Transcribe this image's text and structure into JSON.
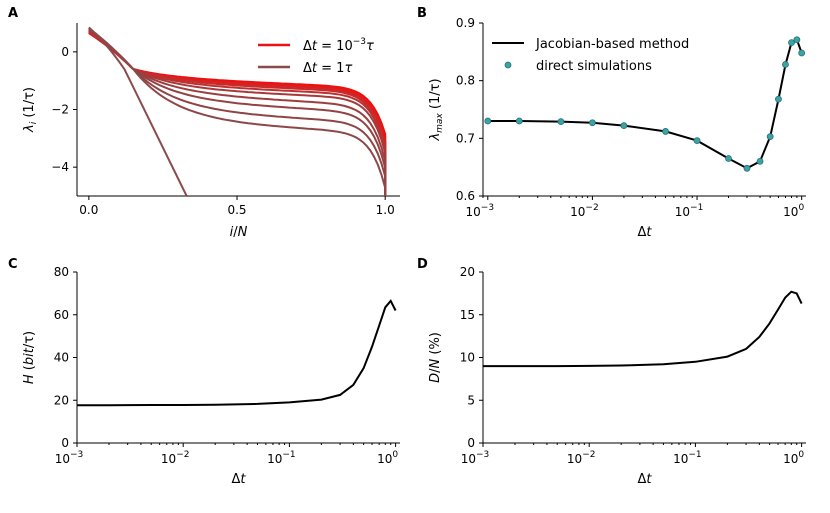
{
  "chart_data": [
    {
      "panel": "A",
      "type": "line",
      "xlabel_parts": [
        "i",
        "/",
        "N"
      ],
      "ylabel_parts": [
        "λ",
        "i",
        " (1/τ)"
      ],
      "xlim": [
        -0.04,
        1.05
      ],
      "ylim": [
        -5.0,
        1.0
      ],
      "xticks": [
        0.0,
        0.5,
        1.0
      ],
      "xtick_labels": [
        "0.0",
        "0.5",
        "1.0"
      ],
      "yticks": [
        0,
        -2,
        -4
      ],
      "ytick_labels": [
        "0",
        "−2",
        "−4"
      ],
      "legend": [
        {
          "label_parts": [
            "Δ",
            "t",
            " = 10",
            "−3",
            "τ"
          ],
          "color": "#ee1111"
        },
        {
          "label_parts": [
            "Δ",
            "t",
            " = 1",
            "τ"
          ],
          "color": "#8c4b4b"
        }
      ],
      "legend_position": "top-right",
      "spectra": [
        {
          "plateau": -1.1,
          "start": 0.65,
          "end": -2.7,
          "color": "#ee1111"
        },
        {
          "plateau": -1.13,
          "start": 0.66,
          "end": -2.8,
          "color": "#ee1111"
        },
        {
          "plateau": -1.16,
          "start": 0.67,
          "end": -2.9,
          "color": "#e51818"
        },
        {
          "plateau": -1.2,
          "start": 0.68,
          "end": -3.0,
          "color": "#d82222"
        },
        {
          "plateau": -1.26,
          "start": 0.7,
          "end": -3.1,
          "color": "#c82b2b"
        },
        {
          "plateau": -1.35,
          "start": 0.72,
          "end": -3.2,
          "color": "#b83232"
        },
        {
          "plateau": -1.48,
          "start": 0.74,
          "end": -3.35,
          "color": "#a83939"
        },
        {
          "plateau": -1.65,
          "start": 0.76,
          "end": -3.55,
          "color": "#9c3e3e"
        },
        {
          "plateau": -1.9,
          "start": 0.78,
          "end": -3.8,
          "color": "#944242"
        },
        {
          "plateau": -2.25,
          "start": 0.8,
          "end": -4.1,
          "color": "#904545"
        },
        {
          "plateau": -2.6,
          "start": 0.82,
          "end": -4.5,
          "color": "#8c4848"
        }
      ],
      "steep_line": {
        "x": [
          0.0,
          0.33
        ],
        "y": [
          0.85,
          -5.0
        ],
        "color": "#8c4b4b"
      }
    },
    {
      "panel": "B",
      "type": "line",
      "xscale": "log",
      "xlabel_parts": [
        "Δ",
        "t"
      ],
      "ylabel_parts": [
        "λ",
        "max",
        " (1/τ)"
      ],
      "xlim": [
        0.0009,
        1.1
      ],
      "ylim": [
        0.6,
        0.9
      ],
      "xticks": [
        0.001,
        0.01,
        0.1,
        1
      ],
      "xtick_labels": [
        [
          "10",
          "−3"
        ],
        [
          "10",
          "−2"
        ],
        [
          "10",
          "−1"
        ],
        [
          "10",
          "0"
        ]
      ],
      "yticks": [
        0.6,
        0.7,
        0.8,
        0.9
      ],
      "ytick_labels": [
        "0.6",
        "0.7",
        "0.8",
        "0.9"
      ],
      "legend": [
        {
          "label": "Jacobian-based method",
          "kind": "line",
          "color": "#000000"
        },
        {
          "label": "direct simulations",
          "kind": "marker",
          "color": "#3aa3a6"
        }
      ],
      "legend_position": "top-left",
      "series": [
        {
          "name": "Jacobian-based method",
          "x": [
            0.001,
            0.002,
            0.005,
            0.01,
            0.02,
            0.05,
            0.1,
            0.2,
            0.3,
            0.4,
            0.5,
            0.6,
            0.7,
            0.8,
            0.9,
            1.0
          ],
          "y": [
            0.73,
            0.73,
            0.729,
            0.727,
            0.722,
            0.712,
            0.696,
            0.665,
            0.648,
            0.66,
            0.703,
            0.768,
            0.828,
            0.866,
            0.871,
            0.848
          ]
        },
        {
          "name": "direct simulations",
          "x": [
            0.001,
            0.002,
            0.005,
            0.01,
            0.02,
            0.05,
            0.1,
            0.2,
            0.3,
            0.4,
            0.5,
            0.6,
            0.7,
            0.8,
            0.9,
            1.0
          ],
          "y": [
            0.73,
            0.73,
            0.729,
            0.727,
            0.722,
            0.712,
            0.696,
            0.665,
            0.648,
            0.66,
            0.703,
            0.768,
            0.828,
            0.866,
            0.871,
            0.848
          ]
        }
      ]
    },
    {
      "panel": "C",
      "type": "line",
      "xscale": "log",
      "xlabel_parts": [
        "Δ",
        "t"
      ],
      "ylabel_parts": [
        "H",
        " (",
        "bit",
        "/τ)"
      ],
      "xlim": [
        0.001,
        1.1
      ],
      "ylim": [
        0,
        80
      ],
      "xticks": [
        0.001,
        0.01,
        0.1,
        1
      ],
      "xtick_labels": [
        [
          "10",
          "−3"
        ],
        [
          "10",
          "−2"
        ],
        [
          "10",
          "−1"
        ],
        [
          "10",
          "0"
        ]
      ],
      "yticks": [
        0,
        20,
        40,
        60,
        80
      ],
      "ytick_labels": [
        "0",
        "20",
        "40",
        "60",
        "80"
      ],
      "series": [
        {
          "x": [
            0.001,
            0.002,
            0.005,
            0.01,
            0.02,
            0.05,
            0.1,
            0.2,
            0.3,
            0.4,
            0.5,
            0.6,
            0.7,
            0.8,
            0.9,
            1.0
          ],
          "y": [
            17.7,
            17.7,
            17.8,
            17.8,
            17.9,
            18.3,
            19.0,
            20.3,
            22.5,
            27.2,
            35.0,
            45.0,
            55.0,
            63.5,
            66.5,
            62.0
          ]
        }
      ]
    },
    {
      "panel": "D",
      "type": "line",
      "xscale": "log",
      "xlabel_parts": [
        "Δ",
        "t"
      ],
      "ylabel_parts": [
        "D",
        "/",
        "N",
        " (%)"
      ],
      "xlim": [
        0.001,
        1.1
      ],
      "ylim": [
        0,
        20
      ],
      "xticks": [
        0.001,
        0.01,
        0.1,
        1
      ],
      "xtick_labels": [
        [
          "10",
          "−3"
        ],
        [
          "10",
          "−2"
        ],
        [
          "10",
          "−1"
        ],
        [
          "10",
          "0"
        ]
      ],
      "yticks": [
        0,
        5,
        10,
        15,
        20
      ],
      "ytick_labels": [
        "0",
        "5",
        "10",
        "15",
        "20"
      ],
      "series": [
        {
          "x": [
            0.001,
            0.002,
            0.005,
            0.01,
            0.02,
            0.05,
            0.1,
            0.2,
            0.3,
            0.4,
            0.5,
            0.6,
            0.7,
            0.8,
            0.9,
            1.0
          ],
          "y": [
            9.0,
            9.0,
            9.0,
            9.02,
            9.06,
            9.2,
            9.5,
            10.1,
            11.0,
            12.4,
            14.0,
            15.6,
            17.0,
            17.7,
            17.5,
            16.3
          ]
        }
      ]
    }
  ]
}
